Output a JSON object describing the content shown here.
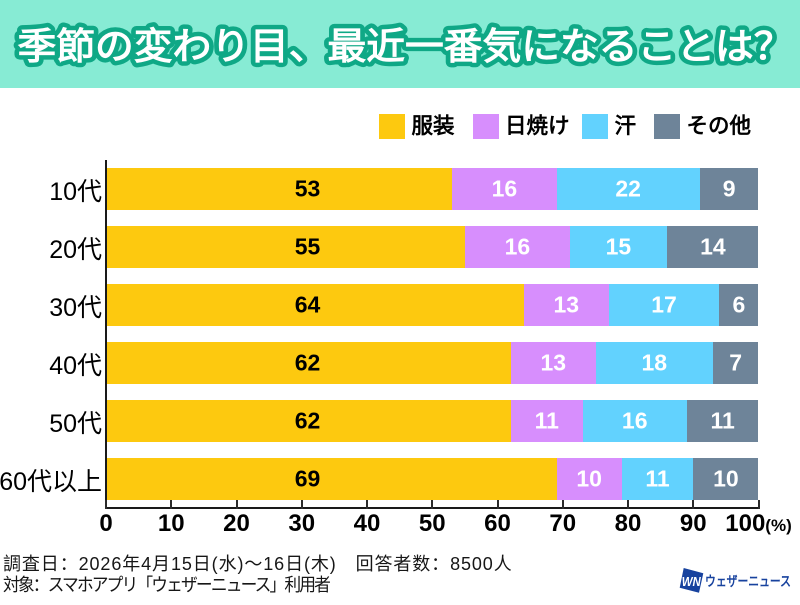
{
  "header": {
    "title": "季節の変わり目、最近一番気になることは？"
  },
  "chart_data": {
    "type": "bar",
    "orientation": "horizontal",
    "stacked": true,
    "title": "季節の変わり目、最近一番気になることは？",
    "categories": [
      "10代",
      "20代",
      "30代",
      "40代",
      "50代",
      "60代以上"
    ],
    "series": [
      {
        "name": "服装",
        "color": "#FDC90F",
        "label_color": "#000000",
        "values": [
          53,
          55,
          64,
          62,
          62,
          69
        ]
      },
      {
        "name": "日焼け",
        "color": "#D78EFD",
        "label_color": "#FFFFFF",
        "values": [
          16,
          16,
          13,
          13,
          11,
          10
        ]
      },
      {
        "name": "汗",
        "color": "#62D2FE",
        "label_color": "#FFFFFF",
        "values": [
          22,
          15,
          17,
          18,
          16,
          11
        ]
      },
      {
        "name": "その他",
        "color": "#6E8499",
        "label_color": "#FFFFFF",
        "values": [
          9,
          14,
          6,
          7,
          11,
          10
        ]
      }
    ],
    "xlim": [
      0,
      100
    ],
    "xticks": [
      0,
      10,
      20,
      30,
      40,
      50,
      60,
      70,
      80,
      90,
      100
    ],
    "x_unit": "(%)",
    "legend_position": "top-right",
    "grid": false
  },
  "footer": {
    "line1": "調査日：2026年4月15日(水)～16日(木)　回答者数：8500人",
    "line2": "対象：スマホアプリ「ウェザーニュース」利用者"
  },
  "logo": {
    "mark": "WN",
    "text": "ウェザーニュース",
    "color": "#17429E"
  },
  "colors": {
    "header_bg": "#87EBD4",
    "title_fill": "#FFFFFF",
    "title_stroke": "#0FA886",
    "axis": "#1A1A1A",
    "background": "#FFFFFF"
  }
}
